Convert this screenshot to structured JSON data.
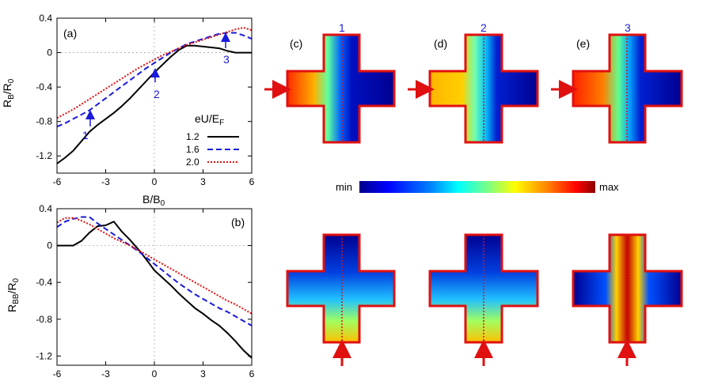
{
  "chart_data": [
    {
      "type": "line",
      "panel_label": "(a)",
      "ylabel_main": "R",
      "ylabel_sub": "B",
      "ylabel_den": "/R",
      "ylabel_den_sub": "0",
      "xlabel_main": "B/B",
      "xlabel_sub": "0",
      "xlim": [
        -6,
        6
      ],
      "ylim": [
        -1.4,
        0.4
      ],
      "xticks": [
        -6,
        -3,
        0,
        3,
        6
      ],
      "yticks": [
        0.4,
        0,
        -0.4,
        -0.8,
        -1.2
      ],
      "ytick_labels": [
        "0.4",
        "0",
        "-0.4",
        "-0.8",
        "-1.2"
      ],
      "xtick_labels": [
        "-6",
        "-3",
        "0",
        "3",
        "6"
      ],
      "legend_title_main": "eU/E",
      "legend_title_sub": "F",
      "legend_position": "bottom-right",
      "series": [
        {
          "name": "1.2",
          "color": "#000000",
          "dash": "solid",
          "x": [
            -6,
            -5.5,
            -5,
            -4.5,
            -4,
            -3.5,
            -3,
            -2.5,
            -2,
            -1.5,
            -1,
            -0.5,
            0,
            0.5,
            1,
            1.5,
            2,
            2.5,
            3,
            3.5,
            4,
            4.5,
            5,
            5.5,
            6
          ],
          "y": [
            -1.29,
            -1.22,
            -1.14,
            -1.03,
            -0.92,
            -0.84,
            -0.77,
            -0.7,
            -0.62,
            -0.53,
            -0.43,
            -0.33,
            -0.23,
            -0.14,
            -0.05,
            0.03,
            0.08,
            0.08,
            0.07,
            0.06,
            0.05,
            0.02,
            0.0,
            0.0,
            0.0
          ]
        },
        {
          "name": "1.6",
          "color": "#1a1adb",
          "dash": "dashed",
          "x": [
            -6,
            -5.5,
            -5,
            -4.5,
            -4,
            -3.5,
            -3,
            -2.5,
            -2,
            -1.5,
            -1,
            -0.5,
            0,
            0.5,
            1,
            1.5,
            2,
            2.5,
            3,
            3.5,
            4,
            4.5,
            5,
            5.5,
            6
          ],
          "y": [
            -0.86,
            -0.82,
            -0.77,
            -0.72,
            -0.67,
            -0.6,
            -0.53,
            -0.46,
            -0.39,
            -0.32,
            -0.25,
            -0.18,
            -0.12,
            -0.06,
            0.0,
            0.05,
            0.1,
            0.13,
            0.16,
            0.19,
            0.22,
            0.23,
            0.23,
            0.2,
            0.16
          ]
        },
        {
          "name": "2.0",
          "color": "#e01010",
          "dash": "dotted",
          "x": [
            -6,
            -5.5,
            -5,
            -4.5,
            -4,
            -3.5,
            -3,
            -2.5,
            -2,
            -1.5,
            -1,
            -0.5,
            0,
            0.5,
            1,
            1.5,
            2,
            2.5,
            3,
            3.5,
            4,
            4.5,
            5,
            5.5,
            6
          ],
          "y": [
            -0.76,
            -0.71,
            -0.66,
            -0.6,
            -0.54,
            -0.48,
            -0.42,
            -0.36,
            -0.3,
            -0.24,
            -0.18,
            -0.13,
            -0.08,
            -0.03,
            0.01,
            0.05,
            0.09,
            0.12,
            0.15,
            0.18,
            0.21,
            0.24,
            0.27,
            0.29,
            0.26
          ]
        }
      ],
      "annotations": [
        {
          "text": "1",
          "x": -4.2,
          "y": -0.68
        },
        {
          "text": "2",
          "x": 0.0,
          "y": -0.22
        },
        {
          "text": "3",
          "x": 4.6,
          "y": 0.08
        }
      ]
    },
    {
      "type": "line",
      "panel_label": "(b)",
      "ylabel_main": "R",
      "ylabel_sub": "BB",
      "ylabel_den": "/R",
      "ylabel_den_sub": "0",
      "xlim": [
        -6,
        6
      ],
      "ylim": [
        -1.3,
        0.4
      ],
      "xticks": [
        -6,
        -3,
        0,
        3,
        6
      ],
      "yticks": [
        0.4,
        0,
        -0.4,
        -0.8,
        -1.2
      ],
      "ytick_labels": [
        "0.4",
        "0",
        "-0.4",
        "-0.8",
        "-1.2"
      ],
      "xtick_labels": [
        "-6",
        "-3",
        "0",
        "3",
        "6"
      ],
      "series": [
        {
          "name": "1.2",
          "color": "#000000",
          "dash": "solid",
          "x": [
            -6,
            -5.5,
            -5,
            -4.5,
            -4,
            -3.5,
            -3,
            -2.5,
            -2,
            -1.5,
            -1,
            -0.5,
            0,
            0.5,
            1,
            1.5,
            2,
            2.5,
            3,
            3.5,
            4,
            4.5,
            5,
            5.5,
            6
          ],
          "y": [
            0.0,
            0.0,
            0.0,
            0.05,
            0.14,
            0.21,
            0.22,
            0.26,
            0.15,
            0.06,
            -0.04,
            -0.15,
            -0.27,
            -0.35,
            -0.43,
            -0.52,
            -0.6,
            -0.68,
            -0.74,
            -0.81,
            -0.87,
            -0.95,
            -1.04,
            -1.14,
            -1.22
          ]
        },
        {
          "name": "1.6",
          "color": "#1a1adb",
          "dash": "dashed",
          "x": [
            -6,
            -5.5,
            -5,
            -4.5,
            -4,
            -3.5,
            -3,
            -2.5,
            -2,
            -1.5,
            -1,
            -0.5,
            0,
            0.5,
            1,
            1.5,
            2,
            2.5,
            3,
            3.5,
            4,
            4.5,
            5,
            5.5,
            6
          ],
          "y": [
            0.2,
            0.26,
            0.29,
            0.31,
            0.31,
            0.24,
            0.18,
            0.12,
            0.06,
            0.0,
            -0.06,
            -0.13,
            -0.2,
            -0.27,
            -0.34,
            -0.41,
            -0.47,
            -0.53,
            -0.58,
            -0.63,
            -0.68,
            -0.72,
            -0.77,
            -0.82,
            -0.87
          ]
        },
        {
          "name": "2.0",
          "color": "#e01010",
          "dash": "dotted",
          "x": [
            -6,
            -5.5,
            -5,
            -4.5,
            -4,
            -3.5,
            -3,
            -2.5,
            -2,
            -1.5,
            -1,
            -0.5,
            0,
            0.5,
            1,
            1.5,
            2,
            2.5,
            3,
            3.5,
            4,
            4.5,
            5,
            5.5,
            6
          ],
          "y": [
            0.25,
            0.3,
            0.3,
            0.27,
            0.23,
            0.18,
            0.13,
            0.08,
            0.04,
            0.0,
            -0.05,
            -0.1,
            -0.15,
            -0.2,
            -0.25,
            -0.3,
            -0.35,
            -0.4,
            -0.45,
            -0.5,
            -0.55,
            -0.6,
            -0.64,
            -0.69,
            -0.74
          ]
        }
      ]
    }
  ],
  "maps": {
    "top": [
      {
        "panel_label": "(c)",
        "number": "1"
      },
      {
        "panel_label": "(d)",
        "number": "2"
      },
      {
        "panel_label": "(e)",
        "number": "3"
      }
    ],
    "colorbar": {
      "min_label": "min",
      "max_label": "max",
      "colors": [
        "#00008b",
        "#0000ff",
        "#0080ff",
        "#00ffff",
        "#80ff80",
        "#ffff00",
        "#ff8000",
        "#ff0000",
        "#8b0000"
      ]
    },
    "outline_color": "#e01010",
    "arrow_color": "#e01010"
  }
}
